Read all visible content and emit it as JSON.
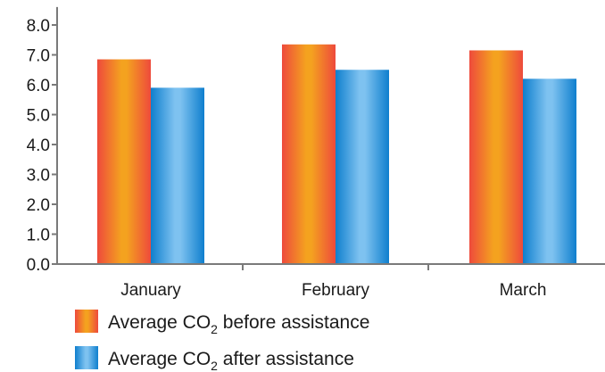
{
  "chart_data": {
    "type": "bar",
    "categories": [
      "January",
      "February",
      "March"
    ],
    "series": [
      {
        "name": "Average CO2 before assistance",
        "name_prefix": "Average CO",
        "name_sub": "2",
        "name_suffix": " before assistance",
        "values": [
          6.85,
          7.35,
          7.15
        ]
      },
      {
        "name": "Average CO2 after assistance",
        "name_prefix": "Average CO",
        "name_sub": "2",
        "name_suffix": " after assistance",
        "values": [
          5.9,
          6.5,
          6.2
        ]
      }
    ],
    "yticks": [
      "0.0",
      "1.0",
      "2.0",
      "3.0",
      "4.0",
      "5.0",
      "6.0",
      "7.0",
      "8.0"
    ],
    "ylim": [
      0,
      8.6
    ],
    "title": "",
    "xlabel": "",
    "ylabel": "",
    "legend_position": "bottom-left",
    "colors": {
      "before_edge": "#ee4a3c",
      "before_center": "#f4a21f",
      "after_edge": "#0f7fce",
      "after_center": "#7ec2f0",
      "axis": "#7a7a7a"
    }
  }
}
